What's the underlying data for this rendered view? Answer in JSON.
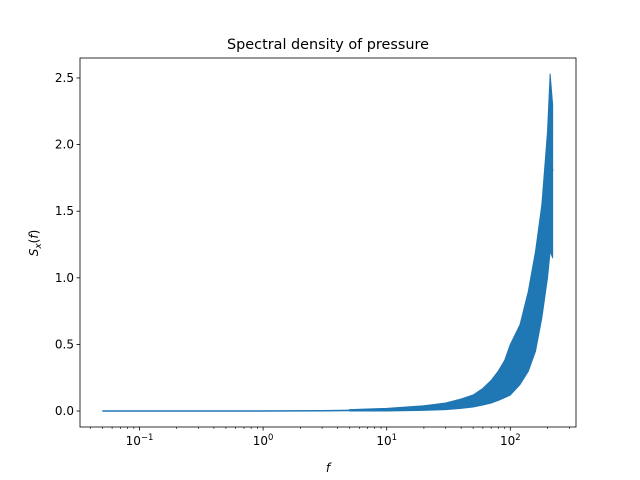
{
  "chart_data": {
    "type": "line",
    "title": "Spectral density of pressure",
    "xlabel": "f",
    "ylabel": "S_x(f)",
    "xscale": "log",
    "xlim": [
      0.033,
      340
    ],
    "ylim": [
      -0.12,
      2.65
    ],
    "grid": false,
    "xticks": [
      {
        "value": 0.1,
        "label": "10",
        "exp": "−1"
      },
      {
        "value": 1,
        "label": "10",
        "exp": "0"
      },
      {
        "value": 10,
        "label": "10",
        "exp": "1"
      },
      {
        "value": 100,
        "label": "10",
        "exp": "2"
      }
    ],
    "yticks": [
      {
        "value": 0.0,
        "label": "0.0"
      },
      {
        "value": 0.5,
        "label": "0.5"
      },
      {
        "value": 1.0,
        "label": "1.0"
      },
      {
        "value": 1.5,
        "label": "1.5"
      },
      {
        "value": 2.0,
        "label": "2.0"
      },
      {
        "value": 2.5,
        "label": "2.5"
      }
    ],
    "series": [
      {
        "color": "#1f77b4",
        "x": [
          0.05,
          0.1,
          0.3,
          1,
          3,
          5,
          10,
          15,
          20,
          30,
          40,
          50,
          60,
          70,
          80,
          90,
          100,
          110,
          120,
          130,
          140,
          150,
          160,
          170,
          180,
          190,
          200,
          210,
          220
        ],
        "y": [
          0.0,
          0.0,
          0.0,
          0.0,
          0.002,
          0.004,
          0.008,
          0.015,
          0.022,
          0.035,
          0.05,
          0.07,
          0.1,
          0.13,
          0.17,
          0.21,
          0.26,
          0.33,
          0.4,
          0.5,
          0.62,
          0.75,
          0.9,
          1.05,
          1.25,
          1.5,
          1.75,
          1.95,
          1.8
        ],
        "noise_band": {
          "x": [
            5,
            10,
            20,
            30,
            40,
            50,
            60,
            70,
            80,
            90,
            100,
            120,
            140,
            160,
            180,
            200,
            210,
            220
          ],
          "low": [
            0.0,
            0.0,
            0.005,
            0.01,
            0.02,
            0.03,
            0.045,
            0.06,
            0.08,
            0.1,
            0.12,
            0.2,
            0.3,
            0.45,
            0.7,
            1.0,
            1.2,
            1.15
          ],
          "high": [
            0.01,
            0.02,
            0.04,
            0.06,
            0.09,
            0.12,
            0.17,
            0.23,
            0.3,
            0.38,
            0.5,
            0.65,
            0.9,
            1.2,
            1.55,
            2.1,
            2.53,
            2.3
          ]
        }
      }
    ]
  }
}
